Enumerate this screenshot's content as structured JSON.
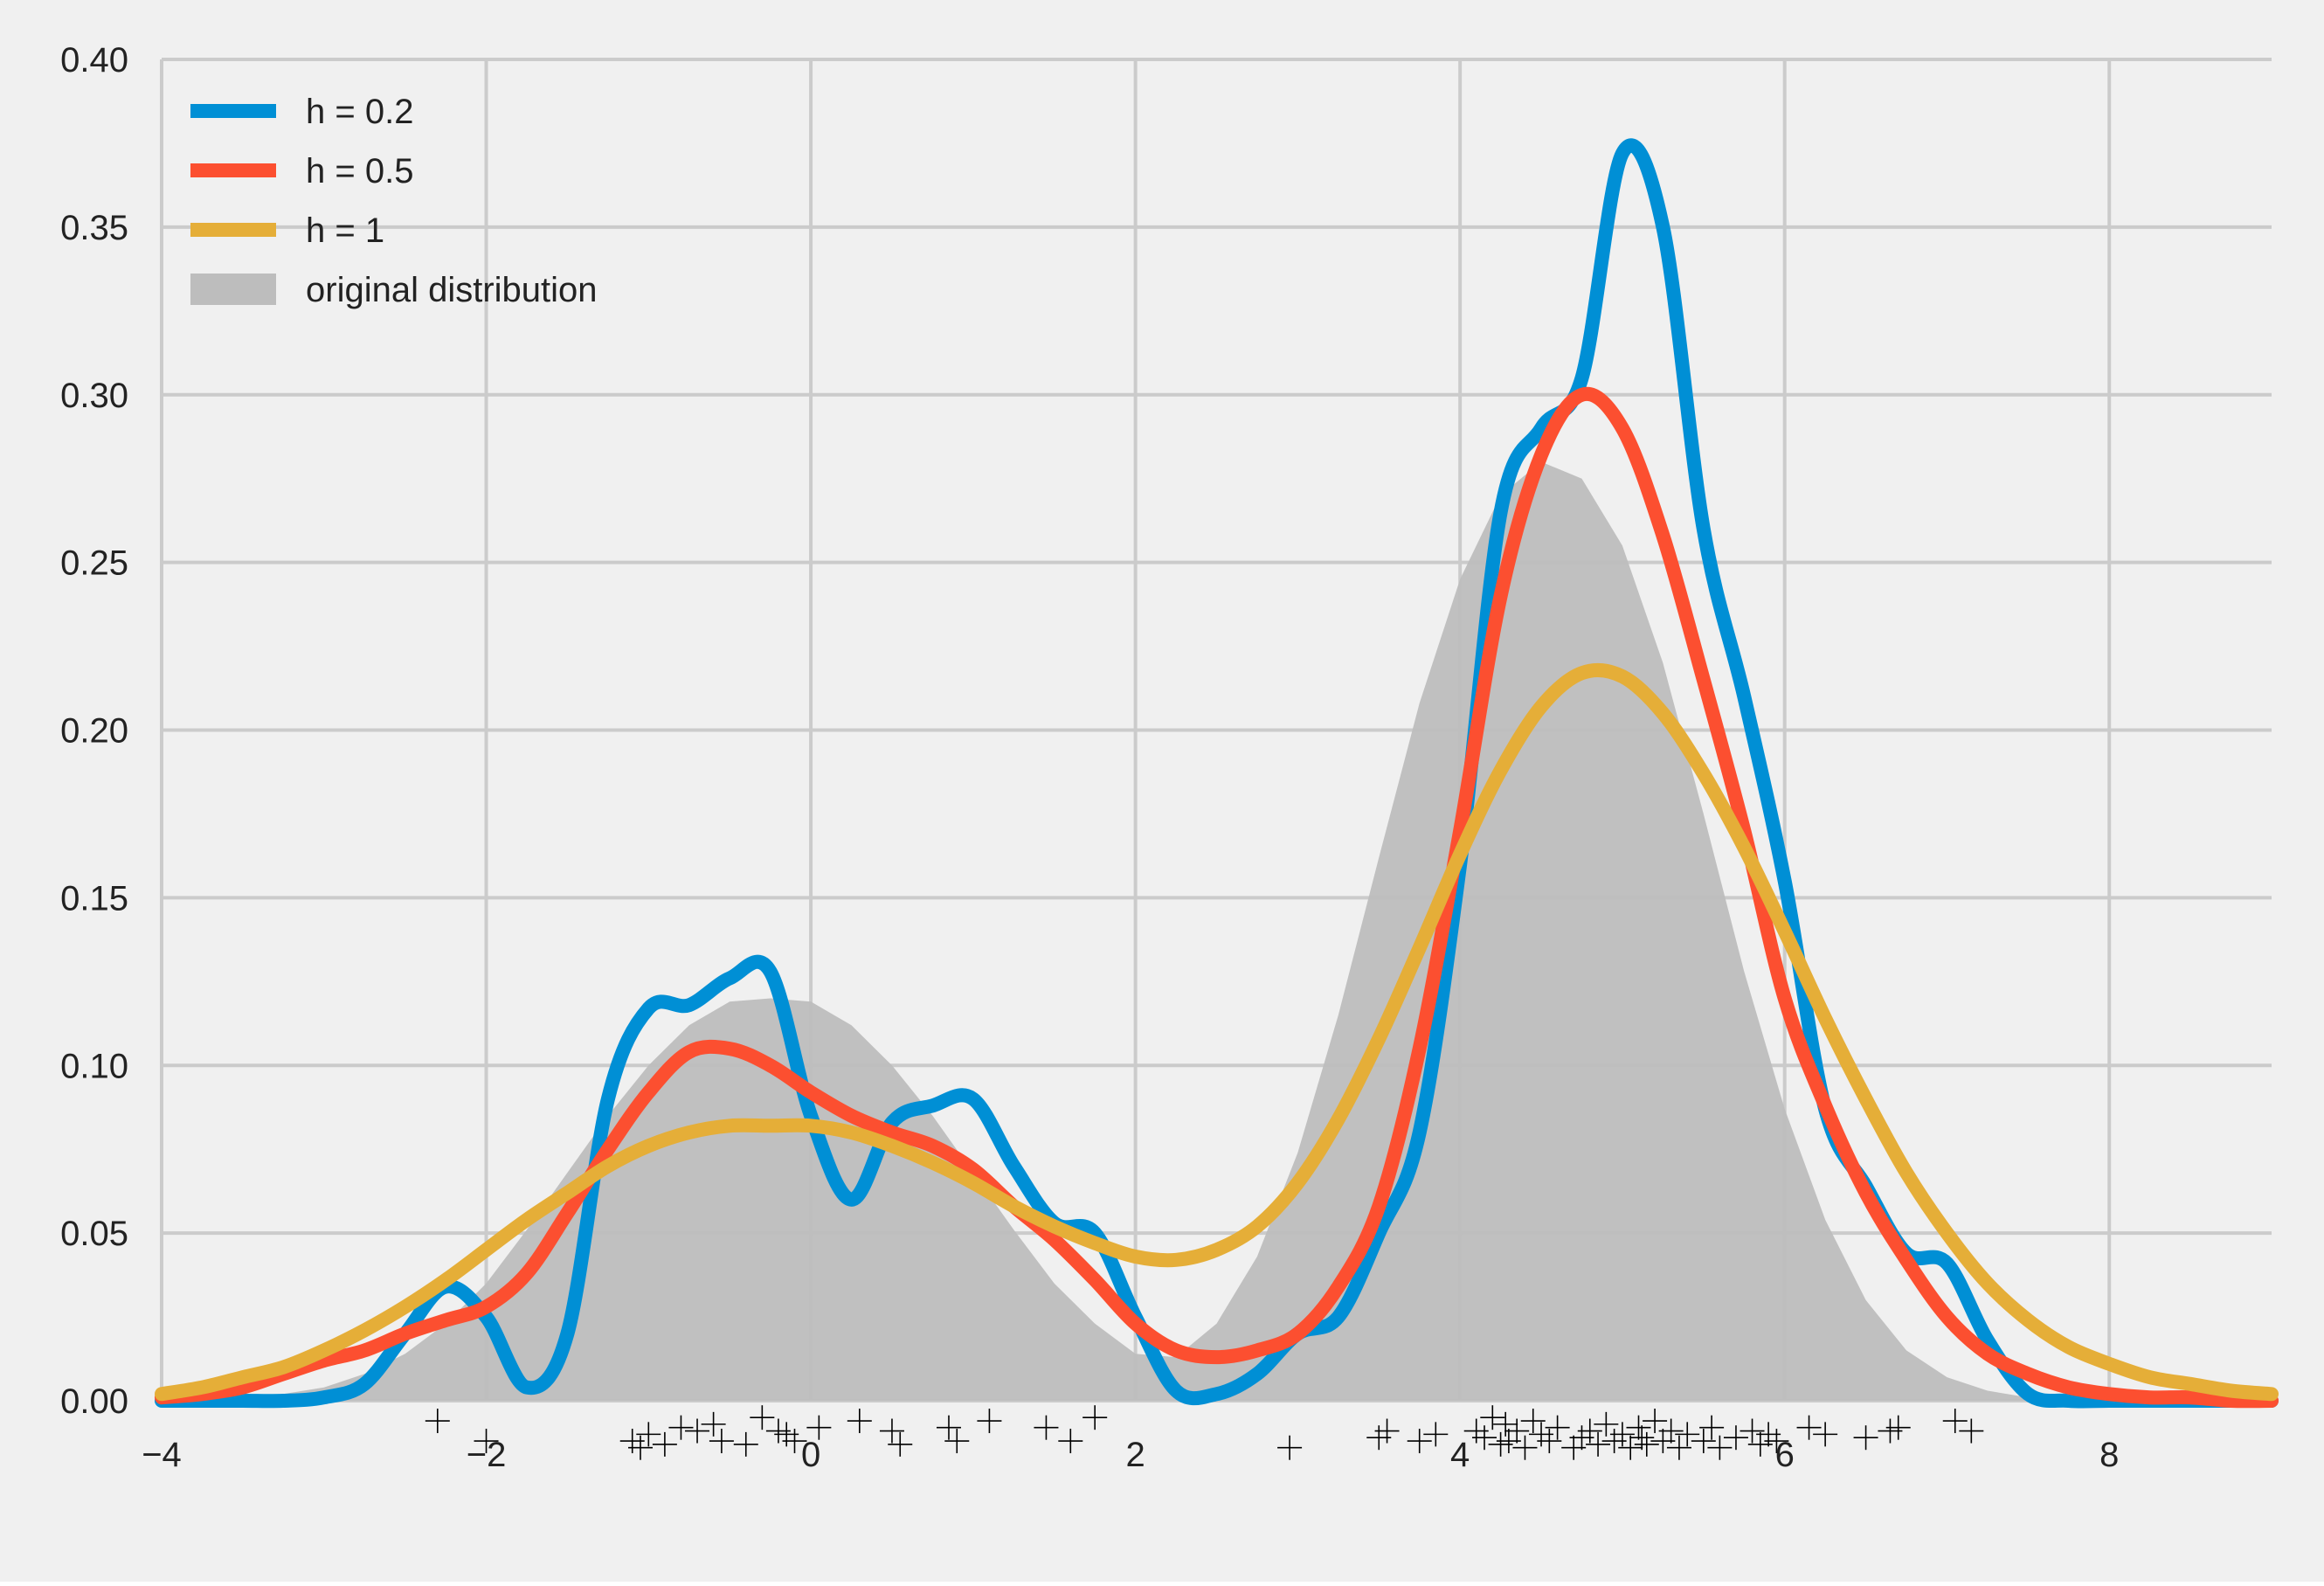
{
  "chart_data": {
    "type": "line",
    "title": "",
    "xlabel": "",
    "ylabel": "",
    "xlim": [
      -4,
      9
    ],
    "ylim": [
      0,
      0.4
    ],
    "x_ticks": [
      -4,
      -2,
      0,
      2,
      4,
      6,
      8
    ],
    "x_tick_labels": [
      "−4",
      "−2",
      "0",
      "2",
      "4",
      "6",
      "8"
    ],
    "y_ticks": [
      0,
      0.05,
      0.1,
      0.15,
      0.2,
      0.25,
      0.3,
      0.35,
      0.4
    ],
    "y_tick_labels": [
      "0.00",
      "0.05",
      "0.10",
      "0.15",
      "0.20",
      "0.25",
      "0.30",
      "0.35",
      "0.40"
    ],
    "grid": true,
    "legend_position": "top-left",
    "background_color": "#f0f0f0",
    "grid_color": "#cbcbcb",
    "x": [
      -4,
      -3.75,
      -3.5,
      -3.25,
      -3,
      -2.75,
      -2.5,
      -2.25,
      -2,
      -1.75,
      -1.5,
      -1.25,
      -1,
      -0.75,
      -0.5,
      -0.25,
      0,
      0.25,
      0.5,
      0.75,
      1,
      1.25,
      1.5,
      1.75,
      2,
      2.25,
      2.5,
      2.75,
      3,
      3.25,
      3.5,
      3.75,
      4,
      4.25,
      4.5,
      4.75,
      5,
      5.25,
      5.5,
      5.75,
      6,
      6.25,
      6.5,
      6.75,
      7,
      7.25,
      7.5,
      7.75,
      8,
      8.25,
      8.5,
      8.75,
      9
    ],
    "series": [
      {
        "name": "h = 0.2",
        "color": "#008fd5",
        "kind": "line",
        "values": [
          0,
          0,
          0,
          0,
          0.001,
          0.005,
          0.02,
          0.034,
          0.025,
          0.004,
          0.02,
          0.09,
          0.117,
          0.118,
          0.126,
          0.128,
          0.085,
          0.06,
          0.083,
          0.088,
          0.09,
          0.07,
          0.053,
          0.05,
          0.025,
          0.003,
          0.002,
          0.008,
          0.02,
          0.025,
          0.05,
          0.08,
          0.16,
          0.265,
          0.29,
          0.305,
          0.372,
          0.35,
          0.26,
          0.21,
          0.155,
          0.087,
          0.064,
          0.044,
          0.041,
          0.018,
          0.002,
          0,
          0,
          0,
          0,
          0,
          0
        ]
      },
      {
        "name": "h = 0.5",
        "color": "#fc4f30",
        "kind": "line",
        "values": [
          0.001,
          0.002,
          0.004,
          0.008,
          0.012,
          0.015,
          0.02,
          0.024,
          0.028,
          0.038,
          0.056,
          0.075,
          0.092,
          0.104,
          0.105,
          0.1,
          0.092,
          0.085,
          0.08,
          0.076,
          0.069,
          0.058,
          0.048,
          0.036,
          0.023,
          0.015,
          0.013,
          0.015,
          0.02,
          0.034,
          0.058,
          0.105,
          0.17,
          0.24,
          0.282,
          0.3,
          0.29,
          0.258,
          0.215,
          0.17,
          0.12,
          0.088,
          0.062,
          0.042,
          0.025,
          0.014,
          0.008,
          0.004,
          0.002,
          0.001,
          0.001,
          0,
          0
        ]
      },
      {
        "name": "h = 1",
        "color": "#e5ae38",
        "kind": "line",
        "values": [
          0.002,
          0.004,
          0.007,
          0.01,
          0.015,
          0.021,
          0.028,
          0.036,
          0.045,
          0.054,
          0.062,
          0.07,
          0.076,
          0.08,
          0.082,
          0.082,
          0.082,
          0.08,
          0.076,
          0.071,
          0.065,
          0.058,
          0.052,
          0.047,
          0.043,
          0.042,
          0.045,
          0.052,
          0.065,
          0.084,
          0.108,
          0.135,
          0.163,
          0.188,
          0.207,
          0.217,
          0.216,
          0.205,
          0.187,
          0.165,
          0.14,
          0.114,
          0.09,
          0.068,
          0.05,
          0.035,
          0.024,
          0.016,
          0.011,
          0.007,
          0.005,
          0.003,
          0.002
        ]
      },
      {
        "name": "original distribution",
        "color": "#bdbdbd",
        "kind": "area",
        "values": [
          0,
          0,
          0.001,
          0.002,
          0.004,
          0.008,
          0.014,
          0.023,
          0.035,
          0.051,
          0.068,
          0.085,
          0.1,
          0.112,
          0.119,
          0.12,
          0.119,
          0.112,
          0.1,
          0.085,
          0.068,
          0.051,
          0.035,
          0.023,
          0.014,
          0.013,
          0.023,
          0.043,
          0.074,
          0.115,
          0.162,
          0.208,
          0.245,
          0.27,
          0.28,
          0.275,
          0.255,
          0.22,
          0.175,
          0.128,
          0.087,
          0.054,
          0.03,
          0.015,
          0.007,
          0.003,
          0.001,
          0,
          0,
          0,
          0,
          0,
          0
        ]
      }
    ],
    "rug": {
      "marker": "+",
      "color": "#000000",
      "x": [
        -2.3,
        -2.0,
        -1.1,
        -1.05,
        -1.0,
        -0.9,
        -0.8,
        -0.7,
        -0.6,
        -0.55,
        -0.4,
        -0.3,
        -0.2,
        -0.15,
        -0.1,
        0.05,
        0.3,
        0.5,
        0.55,
        0.85,
        0.9,
        1.1,
        1.45,
        1.6,
        1.75,
        2.95,
        3.5,
        3.55,
        3.75,
        3.85,
        4.1,
        4.15,
        4.2,
        4.25,
        4.28,
        4.3,
        4.35,
        4.4,
        4.45,
        4.5,
        4.55,
        4.6,
        4.7,
        4.75,
        4.8,
        4.85,
        4.9,
        4.95,
        5.0,
        5.05,
        5.1,
        5.12,
        5.15,
        5.2,
        5.25,
        5.3,
        5.35,
        5.4,
        5.5,
        5.55,
        5.6,
        5.7,
        5.8,
        5.85,
        5.9,
        5.95,
        6.15,
        6.25,
        6.5,
        6.65,
        6.7,
        7.05,
        7.15
      ],
      "y": [
        -0.006,
        -0.012,
        -0.012,
        -0.014,
        -0.01,
        -0.013,
        -0.008,
        -0.009,
        -0.007,
        -0.012,
        -0.013,
        -0.005,
        -0.009,
        -0.01,
        -0.012,
        -0.008,
        -0.006,
        -0.009,
        -0.013,
        -0.008,
        -0.012,
        -0.006,
        -0.008,
        -0.012,
        -0.005,
        -0.014,
        -0.011,
        -0.009,
        -0.012,
        -0.01,
        -0.009,
        -0.011,
        -0.005,
        -0.013,
        -0.007,
        -0.012,
        -0.009,
        -0.014,
        -0.006,
        -0.01,
        -0.012,
        -0.008,
        -0.014,
        -0.011,
        -0.009,
        -0.013,
        -0.007,
        -0.012,
        -0.01,
        -0.014,
        -0.008,
        -0.011,
        -0.013,
        -0.006,
        -0.012,
        -0.009,
        -0.014,
        -0.01,
        -0.012,
        -0.008,
        -0.014,
        -0.011,
        -0.009,
        -0.013,
        -0.01,
        -0.012,
        -0.008,
        -0.01,
        -0.011,
        -0.009,
        -0.008,
        -0.006,
        -0.009
      ]
    }
  }
}
